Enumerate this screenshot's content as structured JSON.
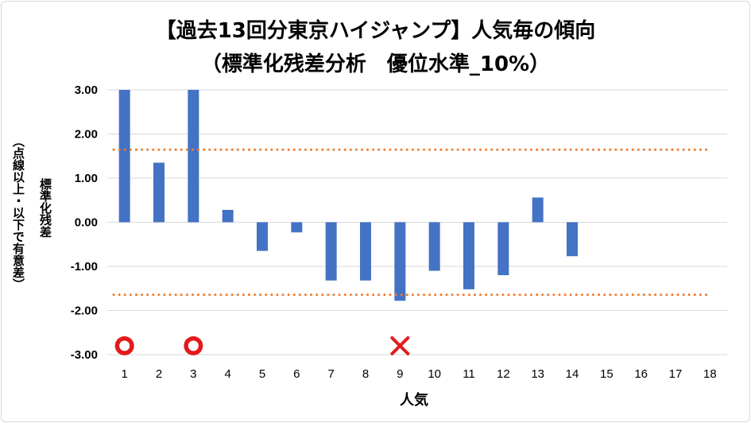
{
  "chart_data": {
    "type": "bar",
    "title": "【過去13回分東京ハイジャンプ】人気毎の傾向",
    "subtitle": "（標準化残差分析　優位水準_10%）",
    "xlabel": "人気",
    "ylabel": "標準化残差",
    "ylabel_note": "（点線以上・以下で有意差）",
    "categories": [
      "1",
      "2",
      "3",
      "4",
      "5",
      "6",
      "7",
      "8",
      "9",
      "10",
      "11",
      "12",
      "13",
      "14",
      "15",
      "16",
      "17",
      "18"
    ],
    "values": [
      3.0,
      1.35,
      3.0,
      0.28,
      -0.65,
      -0.23,
      -1.32,
      -1.32,
      -1.78,
      -1.1,
      -1.52,
      -1.2,
      0.56,
      -0.77,
      null,
      null,
      null,
      null
    ],
    "ylim": [
      -3.0,
      3.0
    ],
    "yticks": [
      "3.00",
      "2.00",
      "1.00",
      "0.00",
      "-1.00",
      "-2.00",
      "-3.00"
    ],
    "ytick_values": [
      3,
      2,
      1,
      0,
      -1,
      -2,
      -3
    ],
    "threshold_upper": 1.645,
    "threshold_lower": -1.645,
    "markers": [
      {
        "category": "1",
        "symbol": "circle"
      },
      {
        "category": "3",
        "symbol": "circle"
      },
      {
        "category": "9",
        "symbol": "cross"
      }
    ],
    "marker_y": -2.8,
    "colors": {
      "bar": "#4472c4",
      "threshold": "#ed7d31",
      "marker": "#e31a1c",
      "grid": "#d9d9d9"
    },
    "grid": true,
    "legend": "none"
  }
}
